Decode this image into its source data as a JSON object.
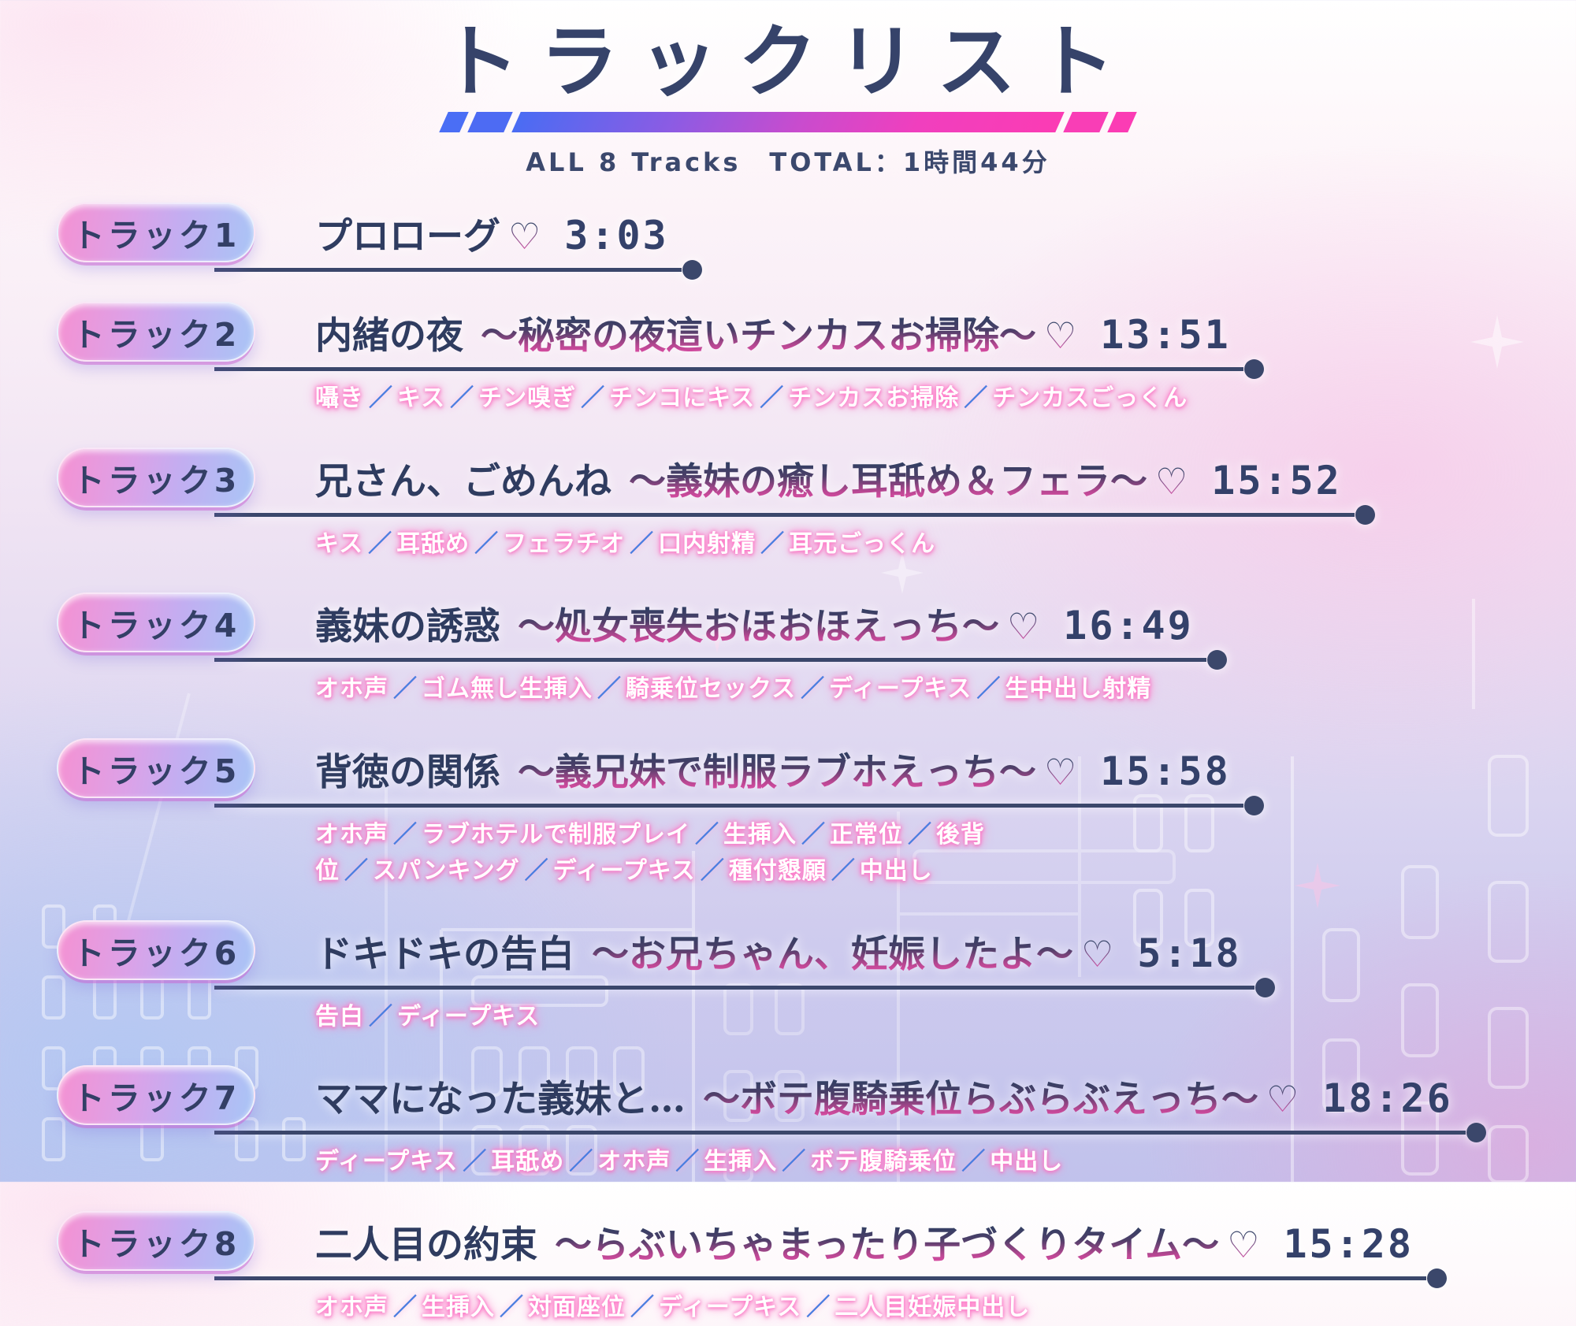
{
  "header": {
    "title": "トラックリスト",
    "summary": "ALL 8 Tracks　TOTAL：1時間44分"
  },
  "colors": {
    "navy": "#3b476b",
    "accent_pink": "#fb3cb4",
    "accent_blue": "#4a6ef5",
    "tag_glow": "#ff79c8",
    "slash_blue": "#4a7de0"
  },
  "tracks": [
    {
      "badge": "トラック1",
      "title_main": "プロローグ",
      "title_sub": "",
      "heart": "♡",
      "time": "3:03",
      "tags": []
    },
    {
      "badge": "トラック2",
      "title_main": "内緒の夜",
      "title_sub": "～秘密の夜這いチンカスお掃除～",
      "heart": "♡",
      "time": "13:51",
      "tags": [
        "囁き",
        "キス",
        "チン嗅ぎ",
        "チンコにキス",
        "チンカスお掃除",
        "チンカスごっくん"
      ]
    },
    {
      "badge": "トラック3",
      "title_main": "兄さん、ごめんね",
      "title_sub": "～義妹の癒し耳舐め＆フェラ～",
      "heart": "♡",
      "time": "15:52",
      "tags": [
        "キス",
        "耳舐め",
        "フェラチオ",
        "口内射精",
        "耳元ごっくん"
      ]
    },
    {
      "badge": "トラック4",
      "title_main": "義妹の誘惑",
      "title_sub": "～処女喪失おほおほえっち～",
      "heart": "♡",
      "time": "16:49",
      "tags": [
        "オホ声",
        "ゴム無し生挿入",
        "騎乗位セックス",
        "ディープキス",
        "生中出し射精"
      ]
    },
    {
      "badge": "トラック5",
      "title_main": "背徳の関係",
      "title_sub": "～義兄妹で制服ラブホえっち～",
      "heart": "♡",
      "time": "15:58",
      "tags": [
        "オホ声",
        "ラブホテルで制服プレイ",
        "生挿入",
        "正常位",
        "後背位",
        "スパンキング",
        "ディープキス",
        "種付懇願",
        "中出し"
      ]
    },
    {
      "badge": "トラック6",
      "title_main": "ドキドキの告白",
      "title_sub": "～お兄ちゃん、妊娠したよ～",
      "heart": "♡",
      "time": "5:18",
      "tags": [
        "告白",
        "ディープキス"
      ]
    },
    {
      "badge": "トラック7",
      "title_main": "ママになった義妹と…",
      "title_sub": "～ボテ腹騎乗位らぶらぶえっち～",
      "heart": "♡",
      "time": "18:26",
      "tags": [
        "ディープキス",
        "耳舐め",
        "オホ声",
        "生挿入",
        "ボテ腹騎乗位",
        "中出し"
      ]
    },
    {
      "badge": "トラック8",
      "title_main": "二人目の約束",
      "title_sub": "～らぶいちゃまったり子づくりタイム～",
      "heart": "♡",
      "time": "15:28",
      "tags": [
        "オホ声",
        "生挿入",
        "対面座位",
        "ディープキス",
        "二人目妊娠中出し"
      ]
    }
  ]
}
